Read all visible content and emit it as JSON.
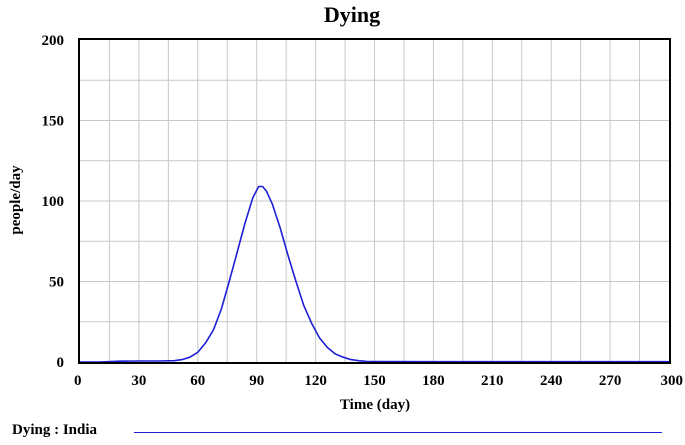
{
  "chart_data": {
    "type": "line",
    "title": "Dying",
    "xlabel": "Time (day)",
    "ylabel": "people/day",
    "xlim": [
      0,
      300
    ],
    "ylim": [
      0,
      200
    ],
    "x_ticks": [
      0,
      30,
      60,
      90,
      120,
      150,
      180,
      210,
      240,
      270,
      300
    ],
    "y_ticks": [
      0,
      50,
      100,
      150,
      200
    ],
    "grid": true,
    "legend": "bottom",
    "series": [
      {
        "name": "Dying : India",
        "color": "#1f1fd6",
        "points": [
          [
            0,
            0
          ],
          [
            10,
            0
          ],
          [
            20,
            0.5
          ],
          [
            30,
            0.6
          ],
          [
            40,
            0.6
          ],
          [
            48,
            0.8
          ],
          [
            52,
            1.5
          ],
          [
            56,
            3
          ],
          [
            60,
            6
          ],
          [
            64,
            12
          ],
          [
            68,
            20
          ],
          [
            72,
            33
          ],
          [
            76,
            50
          ],
          [
            80,
            68
          ],
          [
            84,
            86
          ],
          [
            88,
            102
          ],
          [
            91,
            109
          ],
          [
            93,
            109
          ],
          [
            95,
            106
          ],
          [
            98,
            98
          ],
          [
            102,
            83
          ],
          [
            106,
            66
          ],
          [
            110,
            50
          ],
          [
            114,
            35
          ],
          [
            118,
            24
          ],
          [
            122,
            15
          ],
          [
            126,
            9
          ],
          [
            130,
            5
          ],
          [
            134,
            3
          ],
          [
            138,
            1.5
          ],
          [
            142,
            0.8
          ],
          [
            146,
            0.4
          ],
          [
            150,
            0.3
          ],
          [
            180,
            0.2
          ],
          [
            210,
            0.2
          ],
          [
            240,
            0.2
          ],
          [
            270,
            0.2
          ],
          [
            300,
            0.2
          ]
        ]
      }
    ]
  }
}
